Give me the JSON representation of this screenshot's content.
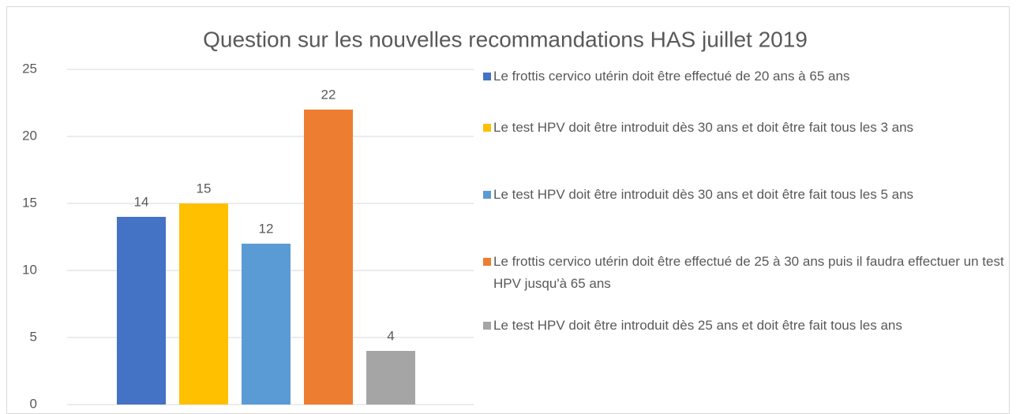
{
  "chart_data": {
    "type": "bar",
    "title": "Question sur les nouvelles recommandations HAS juillet 2019",
    "categories": [
      null
    ],
    "series": [
      {
        "name": "Le frottis cervico utérin doit être effectué de 20 ans à 65 ans",
        "color": "#4472c4",
        "values": [
          14
        ]
      },
      {
        "name": "Le test HPV doit être introduit dès 30 ans et doit être fait tous les 3 ans",
        "color": "#ffc000",
        "values": [
          15
        ]
      },
      {
        "name": "Le test HPV doit être introduit dès 30 ans et doit être fait tous les 5 ans",
        "color": "#5b9bd5",
        "values": [
          12
        ]
      },
      {
        "name": "Le frottis cervico utérin doit être effectué de 25 à 30 ans puis il faudra effectuer un test HPV jusqu'à 65 ans",
        "color": "#ed7d31",
        "values": [
          22
        ]
      },
      {
        "name": "Le test HPV doit être introduit dès 25 ans et doit être fait tous les ans",
        "color": "#a5a5a5",
        "values": [
          4
        ]
      }
    ],
    "ylim": [
      0,
      25
    ],
    "yticks": [
      0,
      5,
      10,
      15,
      20,
      25
    ],
    "grid": true,
    "legend": "right"
  }
}
